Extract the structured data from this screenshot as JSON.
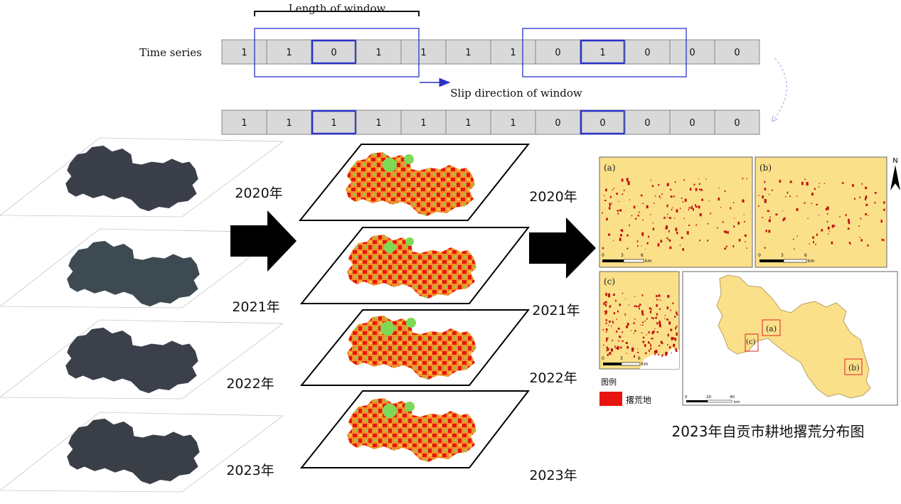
{
  "time_window": {
    "window_label": "Length of window",
    "series_label": "Time series",
    "direction_label": "Slip direction of window",
    "row1": [
      "1",
      "1",
      "0",
      "1",
      "1",
      "1",
      "1",
      "0",
      "1",
      "0",
      "0",
      "0"
    ],
    "row2": [
      "1",
      "1",
      "1",
      "1",
      "1",
      "1",
      "1",
      "0",
      "0",
      "0",
      "0",
      "0"
    ],
    "highlight_cells": [
      2,
      8
    ]
  },
  "years": {
    "labels": [
      "2020年",
      "2021年",
      "2022年",
      "2023年"
    ]
  },
  "map_panel": {
    "panel_labels": [
      "(a)",
      "(b)",
      "(c)"
    ],
    "scale_unit": "km",
    "scale_ticks_small": [
      "0",
      "3",
      "6"
    ],
    "scale_ticks_large": [
      "0",
      "20",
      "40"
    ],
    "north_label": "N",
    "legend_title": "图例",
    "legend_item": "撂荒地",
    "caption": "2023年自贡市耕地撂荒分布图"
  },
  "colors": {
    "window_box": "#3a3fd0",
    "highlight": "#2b32c8",
    "cell_fill": "#d9d9d9",
    "map_bg": "#fbe08a",
    "abandoned": "#e8140f",
    "crop_green": "#7ed957",
    "crop_orange": "#f0902a"
  }
}
